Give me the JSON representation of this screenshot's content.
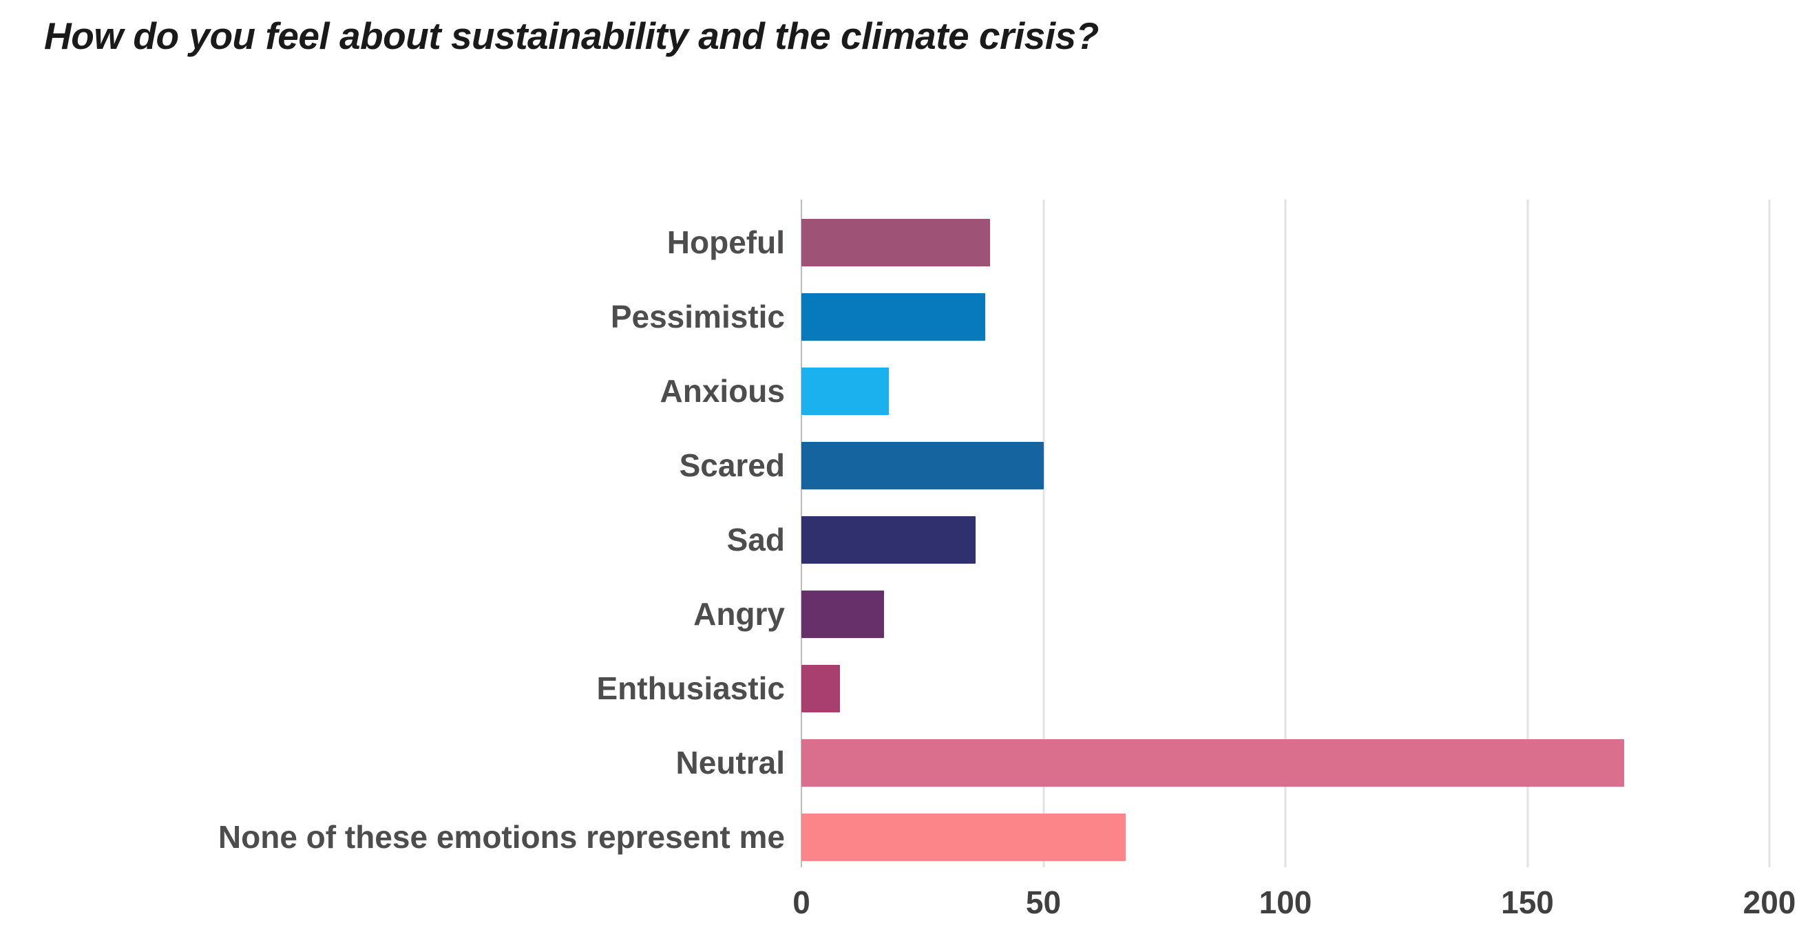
{
  "page": {
    "background": "#ffffff"
  },
  "styles": {
    "title_color": "#1a1a1a",
    "label_color": "#4d4d4d",
    "tick_color": "#404040",
    "gridline_color": "#e2e2e2",
    "axis_line_color": "#bdbdbd"
  },
  "chart_data": {
    "type": "bar",
    "orientation": "horizontal",
    "title": "How do you feel about sustainability and the climate crisis?",
    "categories": [
      "Hopeful",
      "Pessimistic",
      "Anxious",
      "Scared",
      "Sad",
      "Angry",
      "Enthusiastic",
      "Neutral",
      "None of these emotions represent me"
    ],
    "values": [
      39,
      38,
      18,
      50,
      36,
      17,
      8,
      170,
      67
    ],
    "bar_colors": [
      "#9d5276",
      "#0779bd",
      "#1bb1ef",
      "#15639f",
      "#30306e",
      "#68306a",
      "#a93f6f",
      "#d96e8d",
      "#fb8588"
    ],
    "xlabel": "",
    "ylabel": "",
    "xlim": [
      0,
      200
    ],
    "x_ticks": [
      "0",
      "50",
      "100",
      "150",
      "200"
    ],
    "grid": "vertical-gridlines-at-ticks",
    "legend_position": "none"
  }
}
